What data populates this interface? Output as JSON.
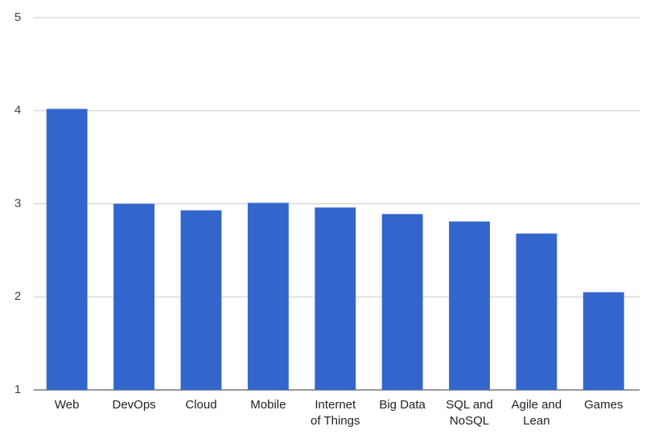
{
  "chart_data": {
    "type": "bar",
    "categories": [
      "Web",
      "DevOps",
      "Cloud",
      "Mobile",
      "Internet of Things",
      "Big Data",
      "SQL and NoSQL",
      "Agile and Lean",
      "Games"
    ],
    "values": [
      4.02,
      3.0,
      2.93,
      3.01,
      2.96,
      2.89,
      2.81,
      2.68,
      2.05
    ],
    "color": "#3366cc",
    "ylim": [
      1,
      5
    ],
    "yticks": [
      1,
      2,
      3,
      4,
      5
    ],
    "grid": true
  }
}
